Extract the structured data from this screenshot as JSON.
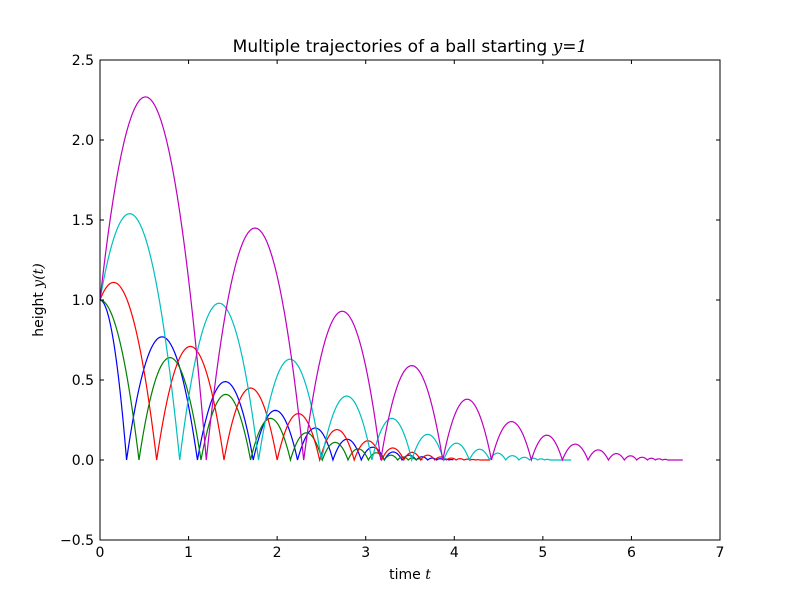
{
  "chart_data": {
    "type": "line",
    "title": {
      "text": "Multiple trajectories of a ball starting ",
      "math": "y=1"
    },
    "xlabel": {
      "text": "time ",
      "math": "t"
    },
    "ylabel": {
      "text": "height ",
      "math": "y(t)"
    },
    "xlim": [
      0,
      7
    ],
    "ylim": [
      -0.5,
      2.5
    ],
    "xticks": [
      "0",
      "1",
      "2",
      "3",
      "4",
      "5",
      "6",
      "7"
    ],
    "yticks": [
      "−0.5",
      "0.0",
      "0.5",
      "1.0",
      "1.5",
      "2.0",
      "2.5"
    ],
    "grid": false,
    "legend": "none",
    "series": [
      {
        "color": "#0000ff",
        "peaks": [
          {
            "x0": 0.0,
            "x1": 0.3,
            "peak": 1.0,
            "start": 1.0
          },
          {
            "x0": 0.3,
            "x1": 1.1,
            "peak": 0.77
          },
          {
            "x0": 1.1,
            "x1": 1.73,
            "peak": 0.49
          },
          {
            "x0": 1.73,
            "x1": 2.23,
            "peak": 0.31
          },
          {
            "x0": 2.23,
            "x1": 2.63,
            "peak": 0.2
          },
          {
            "x0": 2.63,
            "x1": 2.95,
            "peak": 0.13
          },
          {
            "x0": 2.95,
            "x1": 3.21,
            "peak": 0.08
          },
          {
            "x0": 3.21,
            "x1": 3.41,
            "peak": 0.05
          },
          {
            "x0": 3.41,
            "x1": 3.57,
            "peak": 0.03
          },
          {
            "x0": 3.57,
            "x1": 3.7,
            "peak": 0.02
          },
          {
            "x0": 3.7,
            "x1": 3.8,
            "peak": 0.012
          },
          {
            "x0": 3.8,
            "x1": 3.88,
            "peak": 0.008
          },
          {
            "x0": 3.88,
            "x1": 3.94,
            "peak": 0.005
          },
          {
            "x0": 3.94,
            "x1": 3.99,
            "peak": 0.003
          }
        ]
      },
      {
        "color": "#008000",
        "peaks": [
          {
            "x0": 0.0,
            "x1": 0.44,
            "peak": 1.0,
            "start": 1.0
          },
          {
            "x0": 0.44,
            "x1": 1.14,
            "peak": 0.64
          },
          {
            "x0": 1.14,
            "x1": 1.7,
            "peak": 0.41
          },
          {
            "x0": 1.7,
            "x1": 2.15,
            "peak": 0.26
          },
          {
            "x0": 2.15,
            "x1": 2.51,
            "peak": 0.17
          },
          {
            "x0": 2.51,
            "x1": 2.8,
            "peak": 0.11
          },
          {
            "x0": 2.8,
            "x1": 3.03,
            "peak": 0.07
          },
          {
            "x0": 3.03,
            "x1": 3.21,
            "peak": 0.045
          },
          {
            "x0": 3.21,
            "x1": 3.36,
            "peak": 0.03
          },
          {
            "x0": 3.36,
            "x1": 3.48,
            "peak": 0.019
          },
          {
            "x0": 3.48,
            "x1": 3.57,
            "peak": 0.012
          },
          {
            "x0": 3.57,
            "x1": 3.64,
            "peak": 0.008
          }
        ]
      },
      {
        "color": "#ff0000",
        "peaks": [
          {
            "x0": 0.0,
            "x1": 0.64,
            "peak": 1.11,
            "start": 1.0
          },
          {
            "x0": 0.64,
            "x1": 1.4,
            "peak": 0.71
          },
          {
            "x0": 1.4,
            "x1": 2.0,
            "peak": 0.45
          },
          {
            "x0": 2.0,
            "x1": 2.48,
            "peak": 0.29
          },
          {
            "x0": 2.48,
            "x1": 2.87,
            "peak": 0.19
          },
          {
            "x0": 2.87,
            "x1": 3.18,
            "peak": 0.12
          },
          {
            "x0": 3.18,
            "x1": 3.43,
            "peak": 0.075
          },
          {
            "x0": 3.43,
            "x1": 3.62,
            "peak": 0.048
          },
          {
            "x0": 3.62,
            "x1": 3.78,
            "peak": 0.03
          },
          {
            "x0": 3.78,
            "x1": 3.91,
            "peak": 0.019
          },
          {
            "x0": 3.91,
            "x1": 4.02,
            "peak": 0.012
          },
          {
            "x0": 4.02,
            "x1": 4.11,
            "peak": 0.008
          },
          {
            "x0": 4.11,
            "x1": 4.18,
            "peak": 0.005
          },
          {
            "x0": 4.18,
            "x1": 4.24,
            "peak": 0.003
          },
          {
            "x0": 4.24,
            "x1": 4.29,
            "peak": 0.002
          },
          {
            "x0": 4.29,
            "x1": 4.4,
            "peak": 0.0
          }
        ]
      },
      {
        "color": "#00bfbf",
        "peaks": [
          {
            "x0": 0.0,
            "x1": 0.9,
            "peak": 1.54,
            "start": 1.0
          },
          {
            "x0": 0.9,
            "x1": 1.79,
            "peak": 0.98
          },
          {
            "x0": 1.79,
            "x1": 2.5,
            "peak": 0.63
          },
          {
            "x0": 2.5,
            "x1": 3.07,
            "peak": 0.4
          },
          {
            "x0": 3.07,
            "x1": 3.52,
            "peak": 0.26
          },
          {
            "x0": 3.52,
            "x1": 3.88,
            "peak": 0.16
          },
          {
            "x0": 3.88,
            "x1": 4.17,
            "peak": 0.105
          },
          {
            "x0": 4.17,
            "x1": 4.4,
            "peak": 0.067
          },
          {
            "x0": 4.4,
            "x1": 4.58,
            "peak": 0.043
          },
          {
            "x0": 4.58,
            "x1": 4.73,
            "peak": 0.027
          },
          {
            "x0": 4.73,
            "x1": 4.85,
            "peak": 0.017
          },
          {
            "x0": 4.85,
            "x1": 4.94,
            "peak": 0.011
          },
          {
            "x0": 4.94,
            "x1": 5.02,
            "peak": 0.007
          },
          {
            "x0": 5.02,
            "x1": 5.08,
            "peak": 0.004
          },
          {
            "x0": 5.08,
            "x1": 5.32,
            "peak": 0.0
          }
        ]
      },
      {
        "color": "#bf00bf",
        "peaks": [
          {
            "x0": 0.0,
            "x1": 1.2,
            "peak": 2.27,
            "start": 1.0
          },
          {
            "x0": 1.2,
            "x1": 2.3,
            "peak": 1.45
          },
          {
            "x0": 2.3,
            "x1": 3.17,
            "peak": 0.93
          },
          {
            "x0": 3.17,
            "x1": 3.87,
            "peak": 0.59
          },
          {
            "x0": 3.87,
            "x1": 4.42,
            "peak": 0.38
          },
          {
            "x0": 4.42,
            "x1": 4.87,
            "peak": 0.24
          },
          {
            "x0": 4.87,
            "x1": 5.22,
            "peak": 0.155
          },
          {
            "x0": 5.22,
            "x1": 5.51,
            "peak": 0.099
          },
          {
            "x0": 5.51,
            "x1": 5.74,
            "peak": 0.063
          },
          {
            "x0": 5.74,
            "x1": 5.92,
            "peak": 0.04
          },
          {
            "x0": 5.92,
            "x1": 6.06,
            "peak": 0.026
          },
          {
            "x0": 6.06,
            "x1": 6.18,
            "peak": 0.017
          },
          {
            "x0": 6.18,
            "x1": 6.27,
            "peak": 0.011
          },
          {
            "x0": 6.27,
            "x1": 6.35,
            "peak": 0.007
          },
          {
            "x0": 6.35,
            "x1": 6.41,
            "peak": 0.004
          },
          {
            "x0": 6.41,
            "x1": 6.58,
            "peak": 0.0
          }
        ]
      }
    ]
  }
}
